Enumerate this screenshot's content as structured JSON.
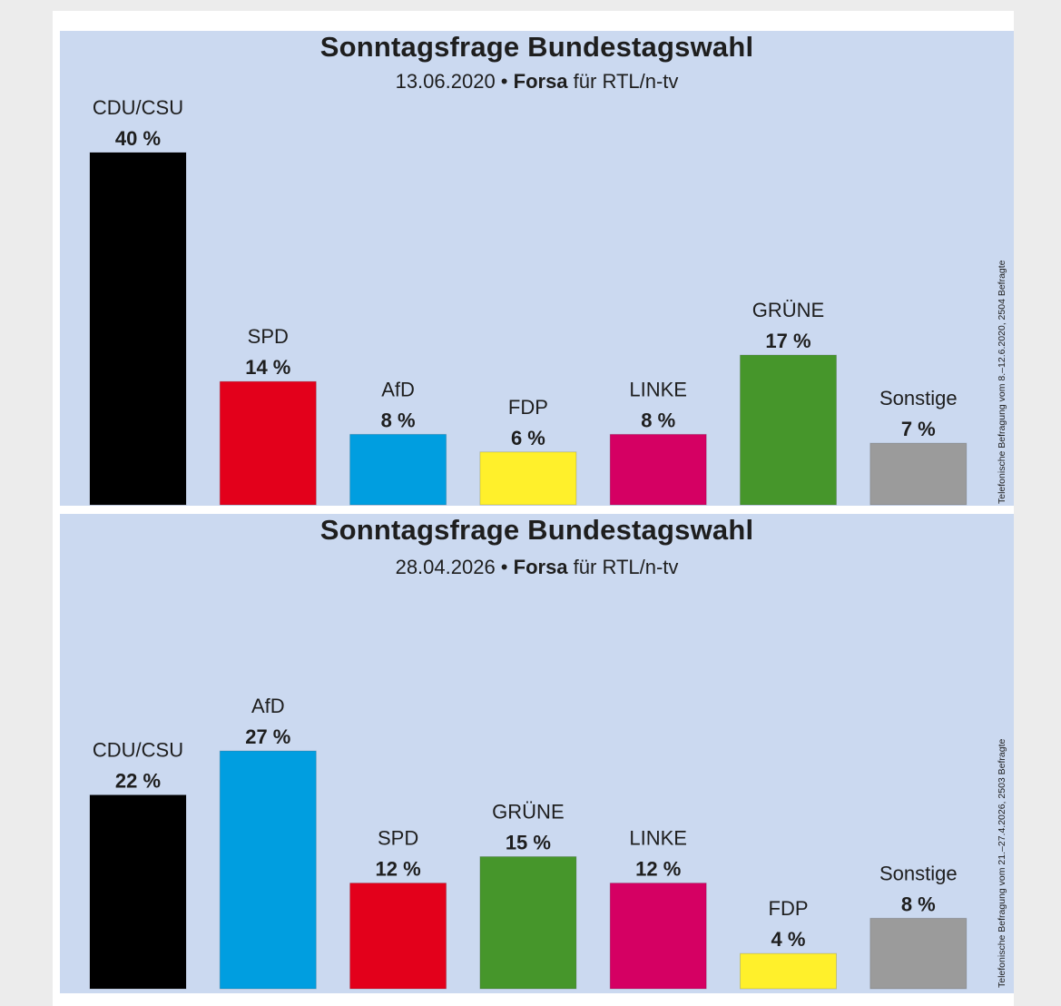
{
  "chart_data": [
    {
      "type": "bar",
      "title": "Sonntagsfrage Bundestagswahl",
      "date": "13.06.2020",
      "institute": "Forsa",
      "client": "für RTL/n-tv",
      "side_note": "Telefonische Befragung vom 8.–12.6.2020, 2504 Befragte",
      "categories": [
        "CDU/CSU",
        "SPD",
        "AfD",
        "FDP",
        "LINKE",
        "GRÜNE",
        "Sonstige"
      ],
      "values": [
        40,
        14,
        8,
        6,
        8,
        17,
        7
      ],
      "value_labels": [
        "40 %",
        "14 %",
        "8 %",
        "6 %",
        "8 %",
        "17 %",
        "7 %"
      ],
      "colors": [
        "#000000",
        "#e3001b",
        "#009ee0",
        "#fff02b",
        "#d50063",
        "#46962b",
        "#9b9b9b"
      ],
      "ylim": [
        0,
        40
      ]
    },
    {
      "type": "bar",
      "title": "Sonntagsfrage Bundestagswahl",
      "date": "28.04.2026",
      "institute": "Forsa",
      "client": "für RTL/n-tv",
      "side_note": "Telefonische Befragung vom 21.–27.4.2026, 2503 Befragte",
      "categories": [
        "CDU/CSU",
        "AfD",
        "SPD",
        "GRÜNE",
        "LINKE",
        "FDP",
        "Sonstige"
      ],
      "values": [
        22,
        27,
        12,
        15,
        12,
        4,
        8
      ],
      "value_labels": [
        "22 %",
        "27 %",
        "12 %",
        "15 %",
        "12 %",
        "4 %",
        "8 %"
      ],
      "colors": [
        "#000000",
        "#009ee0",
        "#e3001b",
        "#46962b",
        "#d50063",
        "#fff02b",
        "#9b9b9b"
      ],
      "ylim": [
        0,
        40
      ]
    }
  ]
}
